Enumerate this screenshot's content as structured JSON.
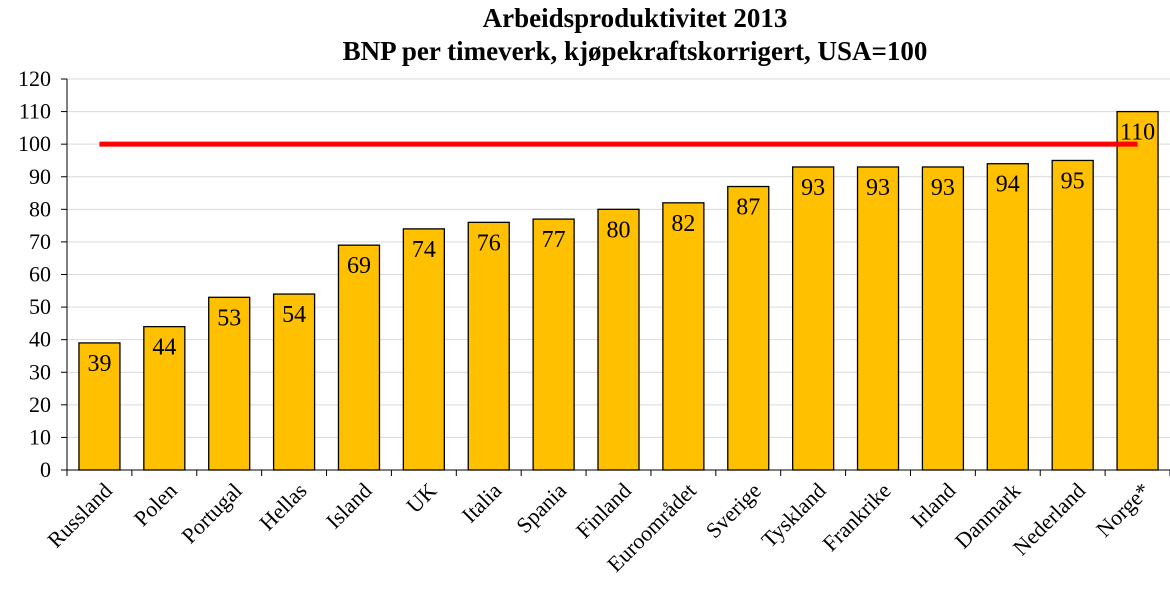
{
  "chart_data": {
    "type": "bar",
    "title": "Arbeidsproduktivitet 2013",
    "subtitle": "BNP per timeverk, kjøpekraftskorrigert, USA=100",
    "xlabel": "",
    "ylabel": "",
    "ylim": [
      0,
      120
    ],
    "yticks": [
      0,
      10,
      20,
      30,
      40,
      50,
      60,
      70,
      80,
      90,
      100,
      110,
      120
    ],
    "categories": [
      "Russland",
      "Polen",
      "Portugal",
      "Hellas",
      "Island",
      "UK",
      "Italia",
      "Spania",
      "Finland",
      "Euroområdet",
      "Sverige",
      "Tyskland",
      "Frankrike",
      "Irland",
      "Danmark",
      "Nederland",
      "Norge*"
    ],
    "values": [
      39,
      44,
      53,
      54,
      69,
      74,
      76,
      77,
      80,
      82,
      87,
      93,
      93,
      93,
      94,
      95,
      110
    ],
    "data_labels": [
      "39",
      "44",
      "53",
      "54",
      "69",
      "74",
      "76",
      "77",
      "80",
      "82",
      "87",
      "93",
      "93",
      "93",
      "94",
      "95",
      "110"
    ],
    "reference_line": {
      "value": 100,
      "color": "#ff0000"
    },
    "bar_color": "#ffc000",
    "grid": true,
    "legend": "none"
  }
}
